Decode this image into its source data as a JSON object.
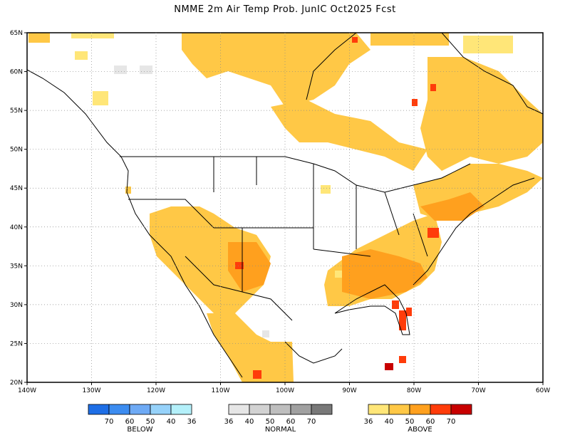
{
  "title": "NMME 2m Air Temp Prob. JunIC  Oct2025 Fcst",
  "axes": {
    "lon_ticks": [
      "140W",
      "130W",
      "120W",
      "110W",
      "100W",
      "90W",
      "80W",
      "70W",
      "60W"
    ],
    "lat_ticks": [
      "65N",
      "60N",
      "55N",
      "50N",
      "45N",
      "40N",
      "35N",
      "30N",
      "25N",
      "20N"
    ]
  },
  "legend": {
    "below": {
      "title": "BELOW",
      "labels": [
        "70",
        "60",
        "50",
        "40",
        "36"
      ],
      "colors": [
        "#1e6ee6",
        "#3c8cf0",
        "#6eaaf5",
        "#96d2fa",
        "#b4f0fa"
      ]
    },
    "normal": {
      "title": "NORMAL",
      "labels": [
        "36",
        "40",
        "50",
        "60",
        "70"
      ],
      "colors": [
        "#e6e6e6",
        "#d2d2d2",
        "#bebebe",
        "#a0a0a0",
        "#787878"
      ]
    },
    "above": {
      "title": "ABOVE",
      "labels": [
        "36",
        "40",
        "50",
        "60",
        "70"
      ],
      "colors": [
        "#ffe678",
        "#ffc846",
        "#ffa01e",
        "#ff3c0a",
        "#c80000"
      ]
    }
  }
}
